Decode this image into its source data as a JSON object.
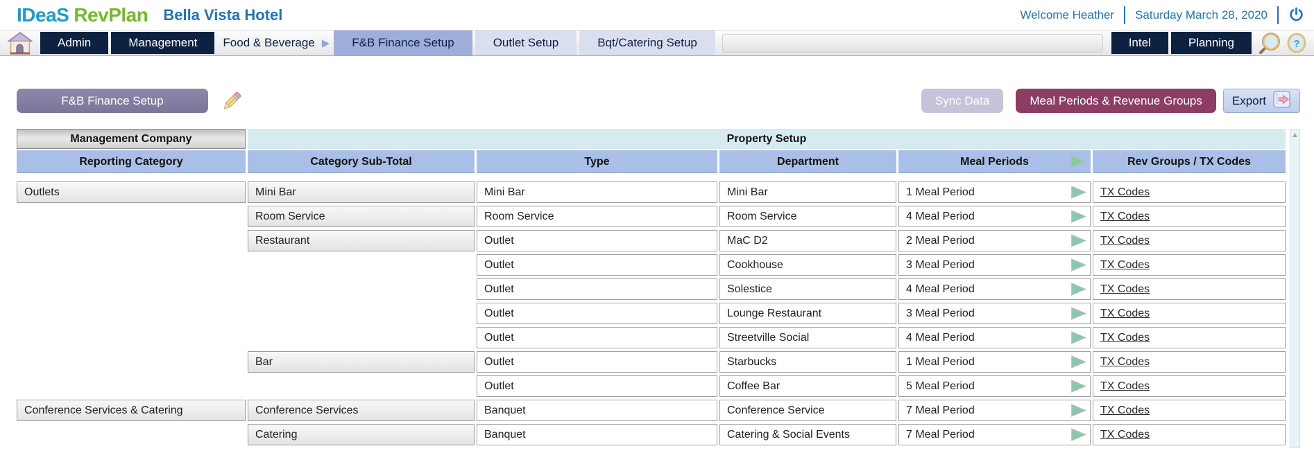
{
  "header": {
    "logo_ideas": "IDeaS",
    "logo_revplan": "RevPlan",
    "hotel_name": "Bella Vista Hotel",
    "welcome": "Welcome Heather",
    "date": "Saturday March 28, 2020"
  },
  "nav": {
    "admin": "Admin",
    "management": "Management",
    "food_beverage": "Food & Beverage",
    "fb_finance_setup": "F&B Finance Setup",
    "outlet_setup": "Outlet Setup",
    "bqt_catering_setup": "Bqt/Catering Setup",
    "intel": "Intel",
    "planning": "Planning"
  },
  "toolbar": {
    "page_button": "F&B Finance Setup",
    "sync_button": "Sync Data",
    "meal_periods_button": "Meal Periods & Revenue Groups",
    "export_button": "Export"
  },
  "table": {
    "group_headers": {
      "management_company": "Management Company",
      "property_setup": "Property Setup"
    },
    "columns": [
      "Reporting Category",
      "Category Sub-Total",
      "Type",
      "Department",
      "Meal Periods",
      "Rev Groups / TX Codes"
    ],
    "tx_link_label": "TX Codes",
    "rows": [
      {
        "reporting_category": "Outlets",
        "sub_total": "Mini Bar",
        "type": "Mini Bar",
        "department": "Mini Bar",
        "meal_periods": "1 Meal Period"
      },
      {
        "reporting_category": "",
        "sub_total": "Room Service",
        "type": "Room Service",
        "department": "Room Service",
        "meal_periods": "4 Meal Period"
      },
      {
        "reporting_category": "",
        "sub_total": "Restaurant",
        "type": "Outlet",
        "department": "MaC D2",
        "meal_periods": "2 Meal Period"
      },
      {
        "reporting_category": "",
        "sub_total": "",
        "type": "Outlet",
        "department": "Cookhouse",
        "meal_periods": "3 Meal Period"
      },
      {
        "reporting_category": "",
        "sub_total": "",
        "type": "Outlet",
        "department": "Solestice",
        "meal_periods": "4 Meal Period"
      },
      {
        "reporting_category": "",
        "sub_total": "",
        "type": "Outlet",
        "department": "Lounge Restaurant",
        "meal_periods": "3 Meal Period"
      },
      {
        "reporting_category": "",
        "sub_total": "",
        "type": "Outlet",
        "department": "Streetville Social",
        "meal_periods": "4 Meal Period"
      },
      {
        "reporting_category": "",
        "sub_total": "Bar",
        "type": "Outlet",
        "department": "Starbucks",
        "meal_periods": "1 Meal Period"
      },
      {
        "reporting_category": "",
        "sub_total": "",
        "type": "Outlet",
        "department": "Coffee Bar",
        "meal_periods": "5 Meal Period"
      },
      {
        "reporting_category": "Conference Services & Catering",
        "sub_total": "Conference Services",
        "type": "Banquet",
        "department": "Conference Service",
        "meal_periods": "7 Meal Period"
      },
      {
        "reporting_category": "",
        "sub_total": "Catering",
        "type": "Banquet",
        "department": "Catering & Social Events",
        "meal_periods": "7 Meal Period"
      }
    ]
  },
  "icons": {
    "home": "house",
    "breadcrumb": "right-triangle",
    "search": "magnifier",
    "help": "magnifier-question",
    "power": "power-symbol",
    "edit": "pencil",
    "export": "door-right-arrow",
    "meal_play": "green-play-triangle",
    "scroll_up": "up-triangle"
  },
  "colors": {
    "brand_teal": "#1E9CC8",
    "brand_green": "#76B82B",
    "header_blue": "#2273B6",
    "nav_dark": "#0D2240",
    "tab_selected": "#9DAEDA",
    "tab_unselected": "#DADFF0",
    "page_chip_purple": "#837FA1",
    "sync_lavender": "#C5C4D8",
    "maroon": "#8B3D63",
    "export_blue": "#C9D6F0",
    "column_header_periwinkle": "#A9BFE7",
    "property_setup_cyan": "#D5EBEF",
    "play_green": "#85CDA0"
  }
}
